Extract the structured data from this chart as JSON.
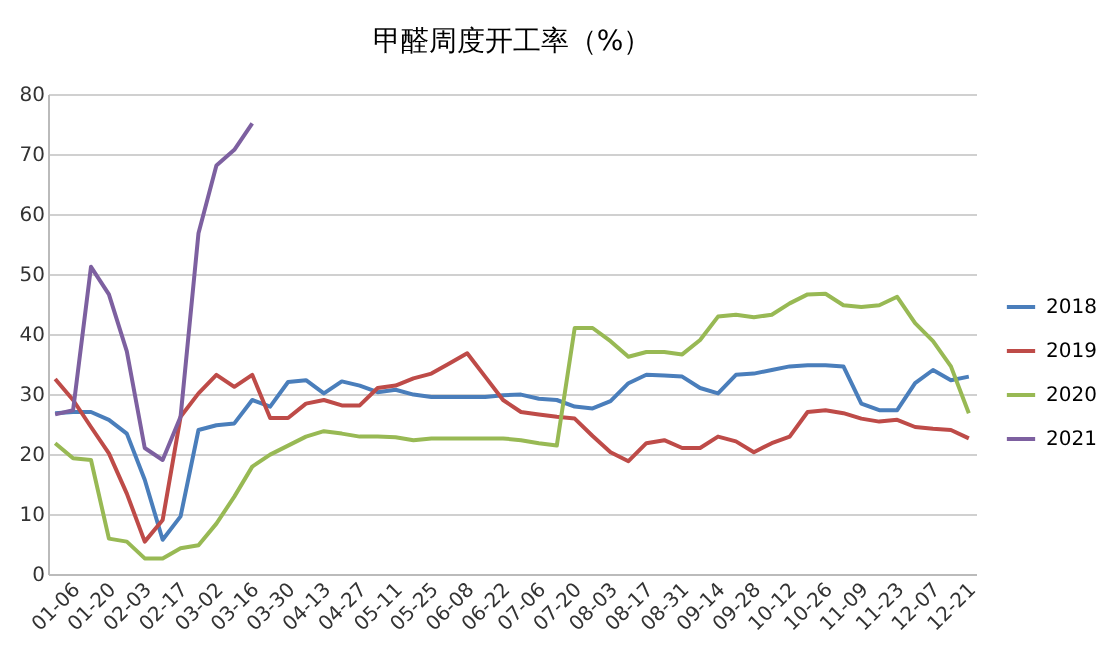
{
  "chart_data": {
    "type": "line",
    "title": "甲醛周度开工率（%）",
    "categories": [
      "01-06",
      null,
      "01-20",
      null,
      "02-03",
      null,
      "02-17",
      null,
      "03-02",
      null,
      "03-16",
      null,
      "03-30",
      null,
      "04-13",
      null,
      "04-27",
      null,
      "05-11",
      null,
      "05-25",
      null,
      "06-08",
      null,
      "06-22",
      null,
      "07-06",
      null,
      "07-20",
      null,
      "08-03",
      null,
      "08-17",
      null,
      "08-31",
      null,
      "09-14",
      null,
      "09-28",
      null,
      "10-12",
      null,
      "10-26",
      null,
      "11-09",
      null,
      "11-23",
      null,
      "12-07",
      null,
      "12-21",
      null
    ],
    "series": [
      {
        "name": "2018",
        "color": "#4a7ebb",
        "values": [
          26.8,
          27,
          27,
          25.7,
          23.4,
          15.7,
          5.7,
          9.6,
          24,
          24.8,
          25.1,
          29,
          27.9,
          32,
          32.3,
          30.1,
          32.1,
          31.4,
          30.3,
          30.7,
          29.9,
          29.5,
          29.5,
          29.5,
          29.5,
          29.8,
          29.9,
          29.2,
          29,
          27.9,
          27.6,
          28.8,
          31.8,
          33.2,
          33.1,
          32.9,
          31,
          30.1,
          33.2,
          33.4,
          34,
          34.6,
          34.8,
          34.8,
          34.6,
          28.4,
          27.3,
          27.3,
          31.8,
          34,
          32.3,
          32.9
        ]
      },
      {
        "name": "2019",
        "color": "#be4b48",
        "values": [
          32.5,
          29,
          24.5,
          20.1,
          13.4,
          5.4,
          9,
          26.2,
          30.1,
          33.2,
          31.2,
          33.2,
          26,
          26,
          28.4,
          29,
          28.1,
          28.1,
          31,
          31.4,
          32.6,
          33.4,
          35.1,
          36.8,
          32.9,
          29,
          27,
          26.6,
          26.2,
          25.9,
          23,
          20.3,
          18.8,
          21.8,
          22.3,
          21,
          21,
          22.9,
          22.1,
          20.3,
          21.8,
          22.9,
          27,
          27.3,
          26.8,
          25.9,
          25.4,
          25.7,
          24.5,
          24.2,
          24,
          22.6
        ]
      },
      {
        "name": "2020",
        "color": "#98b954",
        "values": [
          21.8,
          19.3,
          19,
          5.9,
          5.4,
          2.6,
          2.6,
          4.3,
          4.8,
          8.4,
          12.9,
          17.9,
          19.9,
          21.4,
          22.9,
          23.8,
          23.4,
          22.9,
          22.9,
          22.8,
          22.3,
          22.6,
          22.6,
          22.6,
          22.6,
          22.6,
          22.3,
          21.8,
          21.4,
          41,
          41,
          38.8,
          36.2,
          37,
          37,
          36.6,
          39,
          42.9,
          43.2,
          42.8,
          43.2,
          45.1,
          46.6,
          46.7,
          44.8,
          44.5,
          44.8,
          46.2,
          41.8,
          38.8,
          34.6,
          26.8
        ]
      },
      {
        "name": "2021",
        "color": "#7d60a0",
        "values": [
          26.6,
          27.3,
          51.2,
          46.6,
          37.1,
          21.0,
          19.0,
          26.2,
          56.8,
          68.1,
          70.7,
          75.1,
          null,
          null,
          null,
          null,
          null,
          null,
          null,
          null,
          null,
          null,
          null,
          null,
          null,
          null,
          null,
          null,
          null,
          null,
          null,
          null,
          null,
          null,
          null,
          null,
          null,
          null,
          null,
          null,
          null,
          null,
          null,
          null,
          null,
          null,
          null,
          null,
          null,
          null,
          null,
          null
        ]
      }
    ],
    "ylim": [
      0,
      80
    ],
    "yticks": [
      0,
      10,
      20,
      30,
      40,
      50,
      60,
      70,
      80
    ],
    "grid": "y",
    "legend": "right",
    "marker": "none",
    "line_style": "solid"
  }
}
